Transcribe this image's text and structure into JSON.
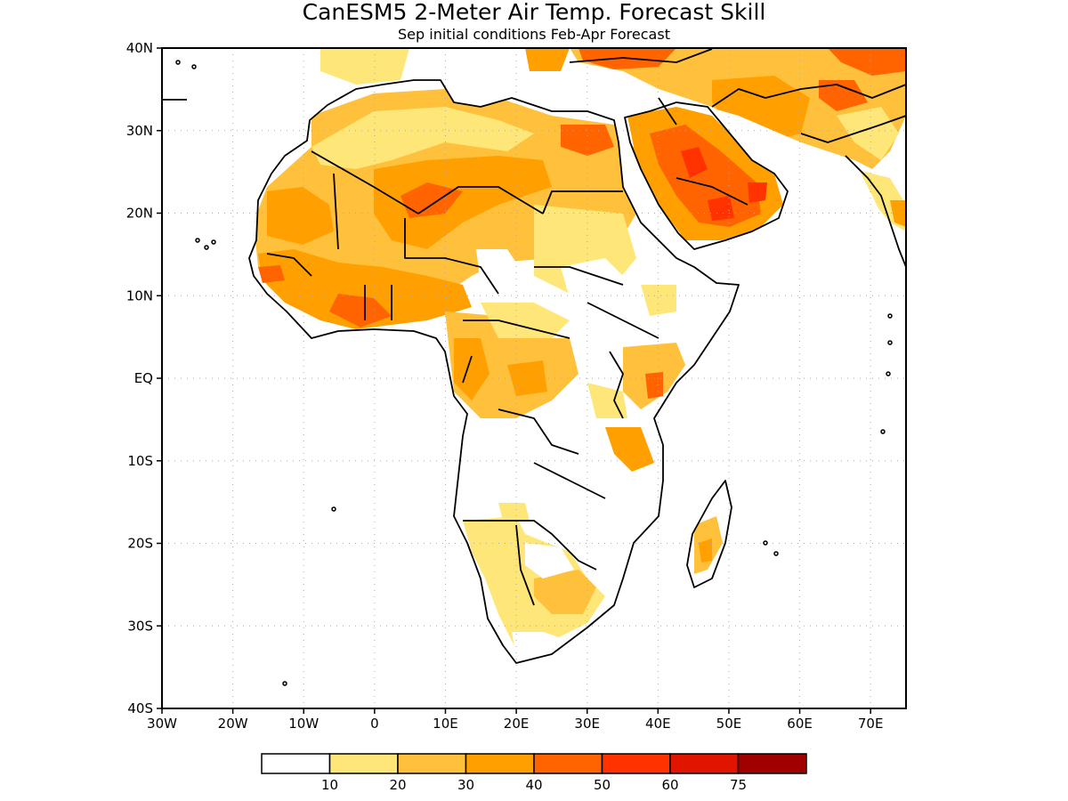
{
  "title": "CanESM5 2-Meter Air Temp. Forecast Skill",
  "subtitle": "Sep initial conditions  Feb-Apr Forecast",
  "map": {
    "lon_range": [
      -30,
      75
    ],
    "lat_range": [
      -40,
      40
    ],
    "lon_ticks": [
      {
        "value": -30,
        "label": "30W"
      },
      {
        "value": -20,
        "label": "20W"
      },
      {
        "value": -10,
        "label": "10W"
      },
      {
        "value": 0,
        "label": "0"
      },
      {
        "value": 10,
        "label": "10E"
      },
      {
        "value": 20,
        "label": "20E"
      },
      {
        "value": 30,
        "label": "30E"
      },
      {
        "value": 40,
        "label": "40E"
      },
      {
        "value": 50,
        "label": "50E"
      },
      {
        "value": 60,
        "label": "60E"
      },
      {
        "value": 70,
        "label": "70E"
      }
    ],
    "lat_ticks": [
      {
        "value": 40,
        "label": "40N"
      },
      {
        "value": 30,
        "label": "30N"
      },
      {
        "value": 20,
        "label": "20N"
      },
      {
        "value": 10,
        "label": "10N"
      },
      {
        "value": 0,
        "label": "EQ"
      },
      {
        "value": -10,
        "label": "10S"
      },
      {
        "value": -20,
        "label": "20S"
      },
      {
        "value": -30,
        "label": "30S"
      },
      {
        "value": -40,
        "label": "40S"
      }
    ],
    "gridlines": "dotted"
  },
  "colorbar": {
    "colors": [
      "#ffffff",
      "#ffe678",
      "#ffc03c",
      "#ffa000",
      "#ff6400",
      "#ff3200",
      "#e11400",
      "#a00000"
    ],
    "labels": [
      "10",
      "20",
      "30",
      "40",
      "50",
      "60",
      "75"
    ]
  }
}
